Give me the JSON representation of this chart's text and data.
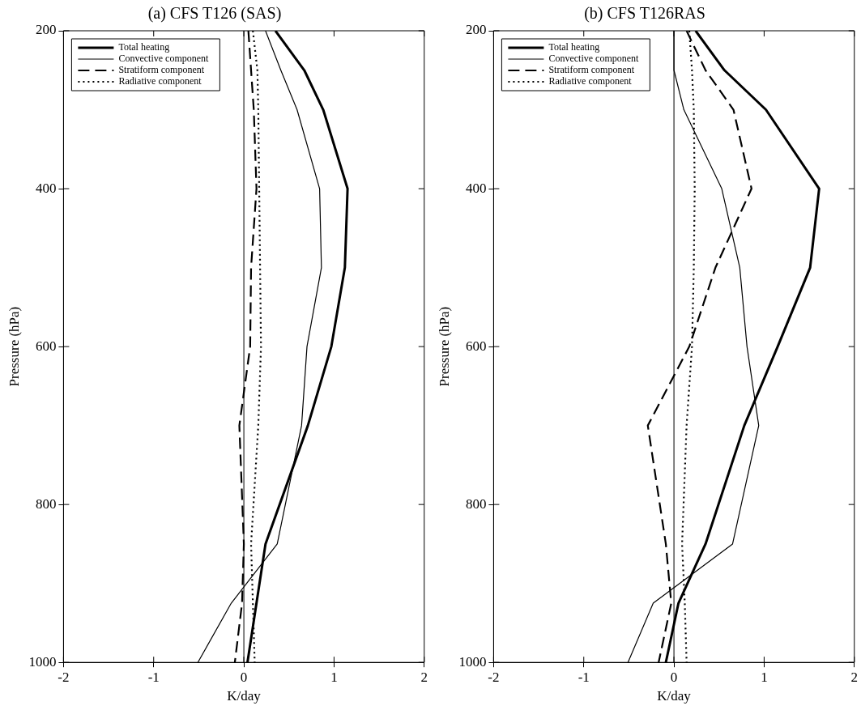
{
  "chart_data": [
    {
      "type": "line",
      "title": "(a) CFS T126 (SAS)",
      "xlabel": "K/day",
      "ylabel": "Pressure (hPa)",
      "xlim": [
        -2,
        2
      ],
      "xticks": [
        -2,
        -1,
        0,
        1,
        2
      ],
      "ylim": [
        1000,
        200
      ],
      "yticks": [
        200,
        400,
        600,
        800,
        1000
      ],
      "grid": false,
      "legend": "top left",
      "marker": "none",
      "ref_lines": [
        {
          "axis": "x",
          "value": 0,
          "color": "#000000",
          "line_style": "solid"
        }
      ],
      "series": [
        {
          "name": "Total heating",
          "color": "#000000",
          "line_style": "solid",
          "x": [
            0.35,
            0.67,
            0.88,
            1.15,
            1.12,
            0.97,
            0.71,
            0.24,
            0.14,
            0.04
          ],
          "values": [
            200,
            250,
            300,
            400,
            500,
            600,
            700,
            850,
            925,
            1000
          ]
        },
        {
          "name": "Convective component",
          "color": "#000000",
          "line_style": "solid",
          "x": [
            0.24,
            0.41,
            0.59,
            0.84,
            0.86,
            0.7,
            0.64,
            0.37,
            -0.14,
            -0.51
          ],
          "values": [
            200,
            250,
            300,
            400,
            500,
            600,
            700,
            850,
            925,
            1000
          ]
        },
        {
          "name": "Stratiform component",
          "color": "#000000",
          "line_style": "dashed",
          "x": [
            0.05,
            0.08,
            0.11,
            0.14,
            0.08,
            0.07,
            -0.05,
            0.0,
            -0.02,
            -0.1
          ],
          "values": [
            200,
            250,
            300,
            400,
            500,
            600,
            700,
            850,
            925,
            1000
          ]
        },
        {
          "name": "Radiative component",
          "color": "#000000",
          "line_style": "dotted",
          "x": [
            0.1,
            0.15,
            0.16,
            0.17,
            0.18,
            0.19,
            0.16,
            0.08,
            0.1,
            0.12
          ],
          "values": [
            200,
            250,
            300,
            400,
            500,
            600,
            700,
            850,
            925,
            1000
          ]
        }
      ]
    },
    {
      "type": "line",
      "title": "(b) CFS T126RAS",
      "xlabel": "K/day",
      "ylabel": "Pressure (hPa)",
      "xlim": [
        -2,
        2
      ],
      "xticks": [
        -2,
        -1,
        0,
        1,
        2
      ],
      "ylim": [
        1000,
        200
      ],
      "yticks": [
        200,
        400,
        600,
        800,
        1000
      ],
      "grid": false,
      "legend": "top left",
      "marker": "none",
      "ref_lines": [
        {
          "axis": "x",
          "value": 0,
          "color": "#000000",
          "line_style": "solid"
        }
      ],
      "series": [
        {
          "name": "Total heating",
          "color": "#000000",
          "line_style": "solid",
          "x": [
            0.24,
            0.56,
            1.02,
            1.61,
            1.51,
            1.15,
            0.78,
            0.35,
            0.05,
            -0.09
          ],
          "values": [
            200,
            250,
            300,
            400,
            500,
            600,
            700,
            850,
            925,
            1000
          ]
        },
        {
          "name": "Convective component",
          "color": "#000000",
          "line_style": "solid",
          "x": [
            0.0,
            0.0,
            0.11,
            0.53,
            0.73,
            0.81,
            0.94,
            0.65,
            -0.23,
            -0.51
          ],
          "values": [
            200,
            250,
            300,
            400,
            500,
            600,
            700,
            850,
            925,
            1000
          ]
        },
        {
          "name": "Stratiform component",
          "color": "#000000",
          "line_style": "dashed",
          "x": [
            0.14,
            0.35,
            0.66,
            0.86,
            0.46,
            0.17,
            -0.29,
            -0.09,
            -0.03,
            -0.17
          ],
          "values": [
            200,
            250,
            300,
            400,
            500,
            600,
            700,
            850,
            925,
            1000
          ]
        },
        {
          "name": "Radiative component",
          "color": "#000000",
          "line_style": "dotted",
          "x": [
            0.17,
            0.2,
            0.22,
            0.23,
            0.22,
            0.2,
            0.14,
            0.09,
            0.12,
            0.14
          ],
          "values": [
            200,
            250,
            300,
            400,
            500,
            600,
            700,
            850,
            925,
            1000
          ]
        }
      ]
    }
  ]
}
